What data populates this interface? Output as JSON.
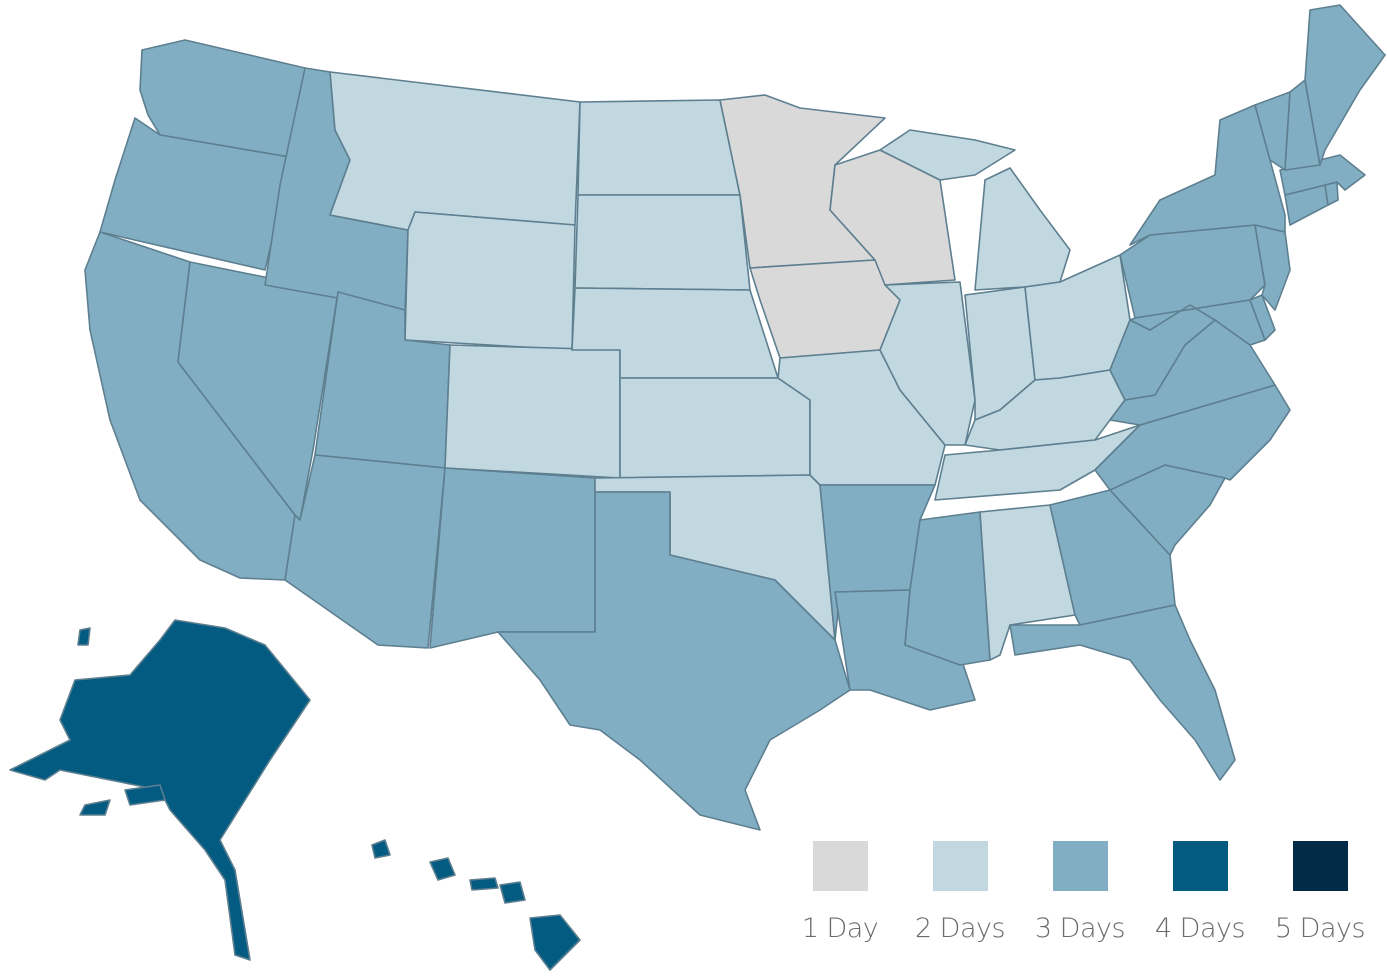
{
  "legend": {
    "items": [
      {
        "label": "1 Day",
        "color": "#d9d9d9",
        "days": 1
      },
      {
        "label": "2 Days",
        "color": "#c2d8e1",
        "days": 2
      },
      {
        "label": "3 Days",
        "color": "#82aec4",
        "days": 3
      },
      {
        "label": "4 Days",
        "color": "#035b82",
        "days": 4
      },
      {
        "label": "5 Days",
        "color": "#012b46",
        "days": 5
      }
    ]
  },
  "state_transit_days": {
    "WA": 3,
    "OR": 3,
    "CA": 3,
    "NV": 3,
    "ID": 3,
    "MT": 2,
    "WY": 2,
    "UT": 3,
    "AZ": 3,
    "CO": 2,
    "NM": 3,
    "ND": 2,
    "SD": 2,
    "NE": 2,
    "KS": 2,
    "OK": 2,
    "TX": 3,
    "MN": 1,
    "IA": 1,
    "WI": 1,
    "MO": 2,
    "AR": 3,
    "LA": 3,
    "IL": 2,
    "MI": 2,
    "IN": 2,
    "OH": 2,
    "KY": 2,
    "TN": 2,
    "MS": 3,
    "AL": 2,
    "GA": 3,
    "FL": 3,
    "SC": 3,
    "NC": 3,
    "VA": 3,
    "WV": 3,
    "PA": 3,
    "NY": 3,
    "VT": 3,
    "NH": 3,
    "ME": 3,
    "MA": 3,
    "RI": 3,
    "CT": 3,
    "NJ": 3,
    "DE": 3,
    "MD": 3,
    "AK": 4,
    "HI": 4
  }
}
